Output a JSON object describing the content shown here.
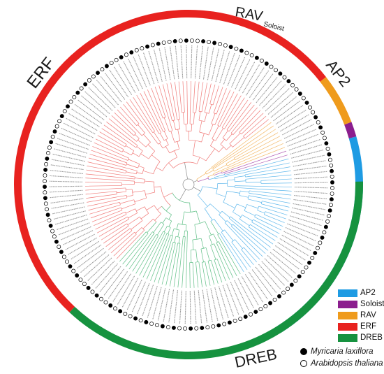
{
  "figure": {
    "groups": [
      {
        "name": "AP2",
        "color": "#1e9be3",
        "start": 74,
        "end": 148
      },
      {
        "name": "Soloist",
        "color": "#8b1e8e",
        "start": 69,
        "end": 74
      },
      {
        "name": "RAV",
        "color": "#ef9b1c",
        "start": 52,
        "end": 69
      },
      {
        "name": "ERF",
        "color": "#e8221f",
        "start": 223,
        "end": 412
      },
      {
        "name": "DREB",
        "color": "#16923f",
        "start": 89,
        "end": 223
      }
    ],
    "group_labels": {
      "erf": "ERF",
      "rav": "RAV",
      "soloist": "Soloist",
      "ap2": "AP2",
      "dreb": "DREB"
    },
    "legend": {
      "items": [
        {
          "label": "AP2",
          "color": "#1e9be3"
        },
        {
          "label": "Soloist",
          "color": "#8b1e8e"
        },
        {
          "label": "RAV",
          "color": "#ef9b1c"
        },
        {
          "label": "ERF",
          "color": "#e8221f"
        },
        {
          "label": "DREB",
          "color": "#16923f"
        }
      ]
    },
    "species": [
      {
        "label": "Myricaria laxiflora",
        "marker": "filled"
      },
      {
        "label": "Arabidopsis thaliana",
        "marker": "open"
      }
    ]
  }
}
